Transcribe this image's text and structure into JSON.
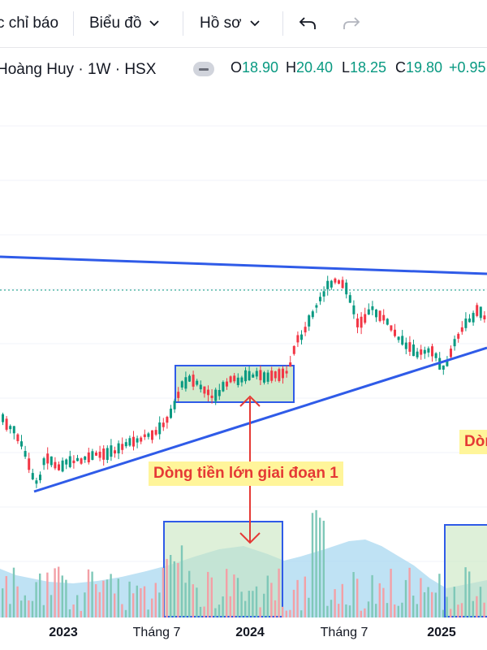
{
  "toolbar": {
    "indicators_label": "c chỉ báo",
    "chart_label": "Biểu đồ",
    "profile_label": "Hồ sơ"
  },
  "legend": {
    "symbol": "Hoàng Huy · 1W · HSX",
    "o_key": "O",
    "o_val": "18.90",
    "h_key": "H",
    "h_val": "20.40",
    "l_key": "L",
    "l_val": "18.25",
    "c_key": "C",
    "c_val": "19.80",
    "change": "+0.95"
  },
  "xaxis": {
    "labels": [
      "2023",
      "Tháng 7",
      "2024",
      "Tháng 7",
      "2025"
    ]
  },
  "annotations": {
    "stage1": "Dòng tiền lớn giai đoạn 1",
    "stage2_partial": "Dòn"
  },
  "colors": {
    "up": "#089981",
    "down": "#f23645",
    "trendline": "#2f5be8",
    "box_fill": "#c8e6c0",
    "box_border": "#2f5be8",
    "volume_area": "#9fd3ee"
  }
}
